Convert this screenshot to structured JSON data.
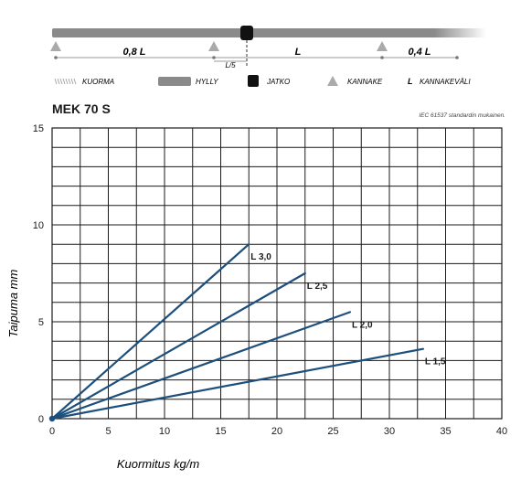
{
  "diagram": {
    "segments": [
      "0,8 L",
      "L",
      "0,4 L"
    ],
    "sublabel": "L/5"
  },
  "legend": [
    {
      "symbol": "load",
      "label": "KUORMA"
    },
    {
      "symbol": "shelf",
      "label": "HYLLY"
    },
    {
      "symbol": "joint",
      "label": "JATKO"
    },
    {
      "symbol": "support",
      "label": "KANNAKE"
    },
    {
      "symbol": "L",
      "label": "KANNAKEVÄLI"
    }
  ],
  "product_title": "MEK 70 S",
  "standard_note": "IEC 61537 standardin mukainen.",
  "colors": {
    "line": "#1d4f7c",
    "grid": "#1a1a1a",
    "shelf": "#8a8a8a",
    "support": "#aaaaaa",
    "joint": "#111111"
  },
  "chart_data": {
    "type": "line",
    "title": "",
    "xlabel": "Kuormitus kg/m",
    "ylabel": "Taipuma mm",
    "xlim": [
      0,
      40
    ],
    "ylim": [
      0,
      15
    ],
    "x_ticks": [
      "0",
      "5",
      "10",
      "15",
      "20",
      "25",
      "30",
      "35",
      "40"
    ],
    "y_ticks": [
      "0",
      "5",
      "10",
      "15"
    ],
    "x_grid_step": 2.5,
    "y_grid_step": 1,
    "grid": true,
    "series": [
      {
        "name": "L 3,0",
        "x": [
          0,
          17.5
        ],
        "y": [
          0,
          9.0
        ]
      },
      {
        "name": "L 2,5",
        "x": [
          0,
          22.5
        ],
        "y": [
          0,
          7.5
        ]
      },
      {
        "name": "L 2,0",
        "x": [
          0,
          26.5
        ],
        "y": [
          0,
          5.5
        ]
      },
      {
        "name": "L 1,5",
        "x": [
          0,
          33.0
        ],
        "y": [
          0,
          3.6
        ]
      }
    ]
  }
}
